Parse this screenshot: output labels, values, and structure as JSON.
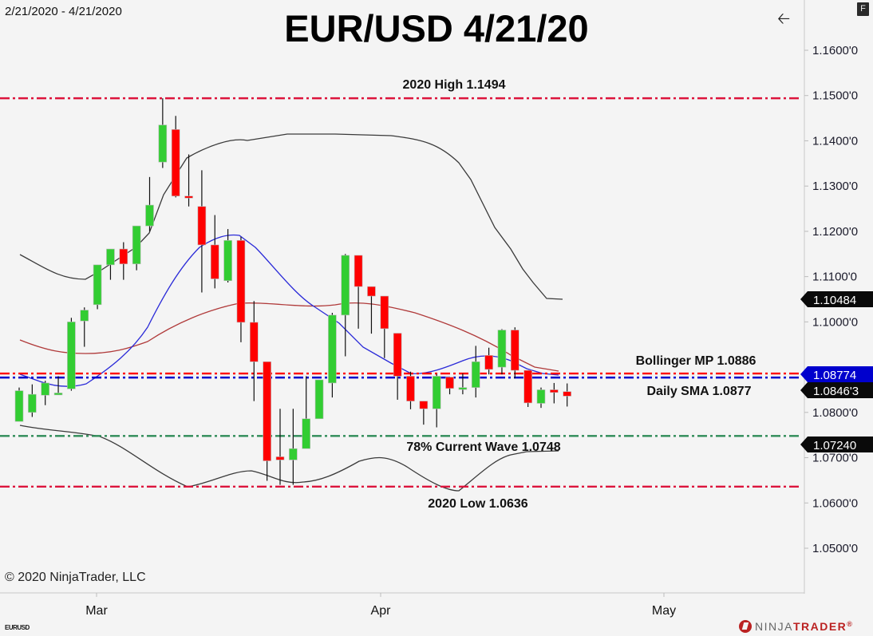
{
  "header": {
    "date_range": "2/21/2020 - 4/21/2020",
    "title": "EUR/USD 4/21/20",
    "back_icon": "chevron-left-icon",
    "f_button_label": "F"
  },
  "footer": {
    "copyright": "© 2020 NinjaTrader, LLC",
    "instrument_small": "EURUSD",
    "logo_ninja": "NINJA",
    "logo_trader": "TRADER",
    "logo_reg": "®"
  },
  "colors": {
    "background": "#f4f4f4",
    "up_candle": "#32cd32",
    "down_candle": "#ff0000",
    "bollinger_bands": "#3a3a3a",
    "bollinger_mid": "#b03a3a",
    "sma": "#2a2ad8",
    "level_red": "#dc143c",
    "level_blue": "#0000cc",
    "level_green": "#2e8b57",
    "tag_black": "#0a0a0a",
    "tag_blue": "#0000cd",
    "tag_darkred": "#8b0000"
  },
  "chart_data": {
    "type": "candlestick",
    "title": "EUR/USD 4/21/20",
    "subtitle": "2/21/2020 - 4/21/2020",
    "xlabel": "",
    "ylabel": "",
    "ylim": [
      1.042,
      1.171
    ],
    "y_ticks": [
      "1.1600'0",
      "1.1500'0",
      "1.1400'0",
      "1.1300'0",
      "1.1200'0",
      "1.1100'0",
      "1.1000'0",
      "1.0800'0",
      "1.0700'0",
      "1.0600'0",
      "1.0500'0"
    ],
    "y_tick_values": [
      1.16,
      1.15,
      1.14,
      1.13,
      1.12,
      1.11,
      1.1,
      1.08,
      1.07,
      1.06,
      1.05
    ],
    "x_ticks": [
      "Mar",
      "Apr",
      "May"
    ],
    "grid": false,
    "candles": [
      {
        "o": 1.078,
        "h": 1.0855,
        "l": 1.078,
        "c": 1.0848
      },
      {
        "o": 1.08,
        "h": 1.0862,
        "l": 1.079,
        "c": 1.084
      },
      {
        "o": 1.0838,
        "h": 1.087,
        "l": 1.0816,
        "c": 1.0865
      },
      {
        "o": 1.0843,
        "h": 1.088,
        "l": 1.0843,
        "c": 1.0843
      },
      {
        "o": 1.0852,
        "h": 1.1009,
        "l": 1.0848,
        "c": 1.1
      },
      {
        "o": 1.1002,
        "h": 1.1032,
        "l": 1.0945,
        "c": 1.1026
      },
      {
        "o": 1.1038,
        "h": 1.1084,
        "l": 1.1028,
        "c": 1.1126
      },
      {
        "o": 1.1126,
        "h": 1.1151,
        "l": 1.1093,
        "c": 1.1161
      },
      {
        "o": 1.1161,
        "h": 1.1176,
        "l": 1.1093,
        "c": 1.1128
      },
      {
        "o": 1.1128,
        "h": 1.1207,
        "l": 1.1114,
        "c": 1.1212
      },
      {
        "o": 1.1212,
        "h": 1.132,
        "l": 1.12,
        "c": 1.1258
      },
      {
        "o": 1.1353,
        "h": 1.1494,
        "l": 1.134,
        "c": 1.1435
      },
      {
        "o": 1.1425,
        "h": 1.1455,
        "l": 1.1275,
        "c": 1.1278
      },
      {
        "o": 1.1278,
        "h": 1.137,
        "l": 1.1255,
        "c": 1.1275
      },
      {
        "o": 1.1255,
        "h": 1.1335,
        "l": 1.1065,
        "c": 1.117
      },
      {
        "o": 1.117,
        "h": 1.1236,
        "l": 1.1074,
        "c": 1.1095
      },
      {
        "o": 1.1091,
        "h": 1.1205,
        "l": 1.1087,
        "c": 1.118
      },
      {
        "o": 1.118,
        "h": 1.1188,
        "l": 1.0955,
        "c": 1.0999
      },
      {
        "o": 1.0999,
        "h": 1.1046,
        "l": 1.0825,
        "c": 1.0912
      },
      {
        "o": 1.0912,
        "h": 1.0856,
        "l": 1.0649,
        "c": 1.0693
      },
      {
        "o": 1.0702,
        "h": 1.0808,
        "l": 1.064,
        "c": 1.0695
      },
      {
        "o": 1.0695,
        "h": 1.0808,
        "l": 1.064,
        "c": 1.072
      },
      {
        "o": 1.072,
        "h": 1.088,
        "l": 1.072,
        "c": 1.0786
      },
      {
        "o": 1.0786,
        "h": 1.087,
        "l": 1.0811,
        "c": 1.0872
      },
      {
        "o": 1.0865,
        "h": 1.102,
        "l": 1.0833,
        "c": 1.1015
      },
      {
        "o": 1.1015,
        "h": 1.115,
        "l": 1.0924,
        "c": 1.1147
      },
      {
        "o": 1.1147,
        "h": 1.1145,
        "l": 1.0985,
        "c": 1.1078
      },
      {
        "o": 1.1078,
        "h": 1.1066,
        "l": 1.0974,
        "c": 1.1057
      },
      {
        "o": 1.1057,
        "h": 1.1035,
        "l": 1.092,
        "c": 1.0985
      },
      {
        "o": 1.0975,
        "h": 1.0975,
        "l": 1.0828,
        "c": 1.088
      },
      {
        "o": 1.088,
        "h": 1.089,
        "l": 1.0807,
        "c": 1.0825
      },
      {
        "o": 1.0825,
        "h": 1.081,
        "l": 1.0773,
        "c": 1.0808
      },
      {
        "o": 1.0808,
        "h": 1.0885,
        "l": 1.0767,
        "c": 1.088
      },
      {
        "o": 1.0878,
        "h": 1.0876,
        "l": 1.084,
        "c": 1.0853
      },
      {
        "o": 1.0855,
        "h": 1.0886,
        "l": 1.084,
        "c": 1.0855
      },
      {
        "o": 1.0855,
        "h": 1.0947,
        "l": 1.0833,
        "c": 1.0912
      },
      {
        "o": 1.0926,
        "h": 1.0943,
        "l": 1.0884,
        "c": 1.0895
      },
      {
        "o": 1.09,
        "h": 1.0984,
        "l": 1.0884,
        "c": 1.0982
      },
      {
        "o": 1.0982,
        "h": 1.0988,
        "l": 1.0875,
        "c": 1.0893
      },
      {
        "o": 1.0893,
        "h": 1.088,
        "l": 1.0812,
        "c": 1.0821
      },
      {
        "o": 1.082,
        "h": 1.0855,
        "l": 1.081,
        "c": 1.085
      },
      {
        "o": 1.085,
        "h": 1.0865,
        "l": 1.082,
        "c": 1.0844
      },
      {
        "o": 1.0846,
        "h": 1.0864,
        "l": 1.0813,
        "c": 1.0836
      }
    ],
    "series": [
      {
        "name": "Bollinger Upper",
        "color": "#3a3a3a",
        "values_note": "rises from ~1.1146 to ~1.1415, flat, then declines to ~1.1048"
      },
      {
        "name": "Bollinger Middle",
        "color": "#b03a3a",
        "last": 1.0886
      },
      {
        "name": "Bollinger Lower",
        "color": "#3a3a3a",
        "last": 1.0724
      },
      {
        "name": "SMA",
        "color": "#2a2ad8",
        "last": 1.0877
      }
    ],
    "levels": [
      {
        "label": "2020 High 1.1494",
        "value": 1.1494,
        "color": "#dc143c",
        "style": "dash-dot"
      },
      {
        "label": "Bollinger MP 1.0886",
        "value": 1.0886,
        "color": "#ff0000",
        "style": "dash-dot"
      },
      {
        "label": "Daily SMA 1.0877",
        "value": 1.0877,
        "color": "#0000cc",
        "style": "dash-dot"
      },
      {
        "label": "78% Current Wave 1.0748",
        "value": 1.0748,
        "color": "#2e8b57",
        "style": "dash-dot"
      },
      {
        "label": "2020 Low 1.0636",
        "value": 1.0636,
        "color": "#dc143c",
        "style": "dash-dot"
      }
    ],
    "price_tags": [
      {
        "label": "1.10484",
        "value": 1.10484,
        "color": "#0a0a0a"
      },
      {
        "label": "1.08774",
        "value": 1.08774,
        "color": "#0000cd"
      },
      {
        "label": "1.0846'3",
        "value": 1.08463,
        "color": "#0a0a0a"
      },
      {
        "label": "1.07240",
        "value": 1.0724,
        "color": "#0a0a0a"
      }
    ]
  }
}
